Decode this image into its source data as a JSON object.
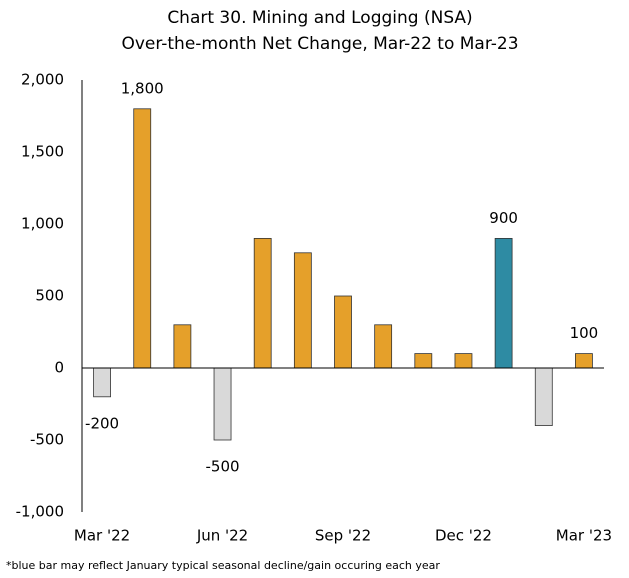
{
  "chart_data": {
    "type": "bar",
    "title": "Chart 30. Mining and Logging (NSA)",
    "subtitle": "Over-the-month Net Change, Mar-22 to Mar-23",
    "categories": [
      "Mar '22",
      null,
      null,
      "Jun '22",
      null,
      null,
      "Sep '22",
      null,
      null,
      "Dec '22",
      null,
      null,
      "Mar '23"
    ],
    "values": [
      -200,
      1800,
      300,
      -500,
      900,
      800,
      500,
      300,
      100,
      100,
      900,
      -400,
      100
    ],
    "value_labels": [
      "-200",
      "1,800",
      null,
      "-500",
      null,
      null,
      null,
      null,
      null,
      null,
      "900",
      null,
      "100"
    ],
    "colors": [
      "#d9d9d9",
      "#e5a02a",
      "#e5a02a",
      "#d9d9d9",
      "#e5a02a",
      "#e5a02a",
      "#e5a02a",
      "#e5a02a",
      "#e5a02a",
      "#e5a02a",
      "#2e8ba3",
      "#d9d9d9",
      "#e5a02a"
    ],
    "ylim": [
      -1000,
      2000
    ],
    "yticks": [
      {
        "value": -1000,
        "label": "-1,000"
      },
      -500,
      0,
      500,
      {
        "value": 1000,
        "label": "1,000"
      },
      {
        "value": 1500,
        "label": "1,500"
      },
      {
        "value": 2000,
        "label": "2,000"
      }
    ],
    "grid": false,
    "footnote": "*blue bar may reflect January typical seasonal decline/gain occuring each year"
  }
}
